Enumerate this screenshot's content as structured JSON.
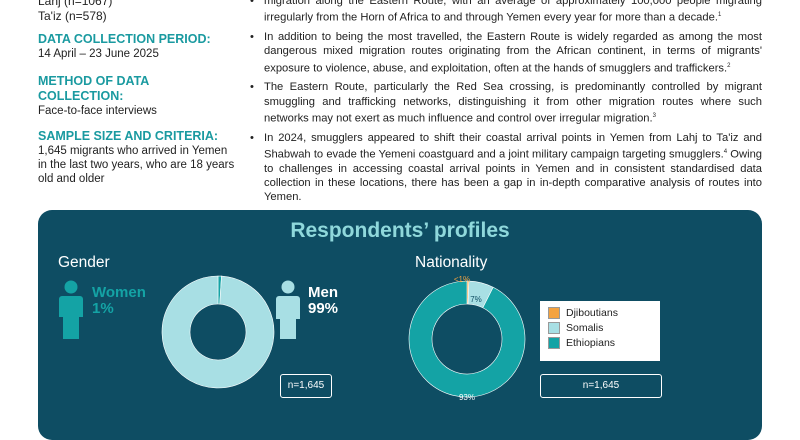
{
  "sidebar": {
    "cut_text": "Lahj (n=1067)",
    "location_line": "Ta'iz (n=578)",
    "period_label": "DATA COLLECTION PERIOD:",
    "period_value": "14 April – 23 June 2025",
    "method_label_1": "METHOD OF DATA",
    "method_label_2": "COLLECTION:",
    "method_value": "Face-to-face interviews",
    "sample_label": "SAMPLE SIZE AND CRITERIA:",
    "sample_value": "1,645 migrants who arrived in Yemen in the last two years, who are 18 years old and older"
  },
  "bullets": [
    {
      "text": "migration along the Eastern Route, with an average of approximately 100,000 people migrating irregularly from the Horn of Africa to and through Yemen every year for more than a decade.",
      "ref": "1"
    },
    {
      "text": "In addition to being the most travelled, the Eastern Route is widely regarded as among the most dangerous mixed migration routes originating from the African continent, in terms of migrants' exposure to violence, abuse, and exploitation, often at the hands of smugglers and traffickers.",
      "ref": "2"
    },
    {
      "text": "The Eastern Route, particularly the Red Sea crossing, is predominantly controlled by migrant smuggling and trafficking networks, distinguishing it from other migration routes where such networks may not exert as much influence and control over irregular migration.",
      "ref": "3"
    },
    {
      "text": "In 2024, smugglers appeared to shift their coastal arrival points in Yemen from Lahj to Ta'iz and Shabwah to evade the Yemeni coastguard and a joint military campaign targeting smugglers.",
      "ref": "4",
      "text2": "Owing to challenges in accessing coastal arrival points in Yemen and in consistent standardised data collection in these locations, there has been a gap in in-depth comparative analysis of routes into Yemen."
    }
  ],
  "panel": {
    "title": "Respondents’ profiles",
    "gender_heading": "Gender",
    "women_label": "Women",
    "women_pct": "1%",
    "men_label": "Men",
    "men_pct": "99%",
    "gender_n": "n=1,645",
    "nationality_heading": "Nationality",
    "nationality_n": "n=1,645"
  },
  "colors": {
    "panel_bg": "#0e4d63",
    "title": "#8fd8db",
    "light_teal": "#a8dfe4",
    "teal": "#14a3a5",
    "orange": "#f4a340"
  },
  "chart_data": [
    {
      "type": "pie",
      "categories": [
        "Women",
        "Men"
      ],
      "values": [
        1,
        99
      ],
      "title": "Gender"
    },
    {
      "type": "pie",
      "categories": [
        "Djiboutians",
        "Somalis",
        "Ethiopians"
      ],
      "values": [
        0.5,
        7,
        93
      ],
      "labels": [
        "<1%",
        "7%",
        "93%"
      ],
      "title": "Nationality"
    }
  ]
}
